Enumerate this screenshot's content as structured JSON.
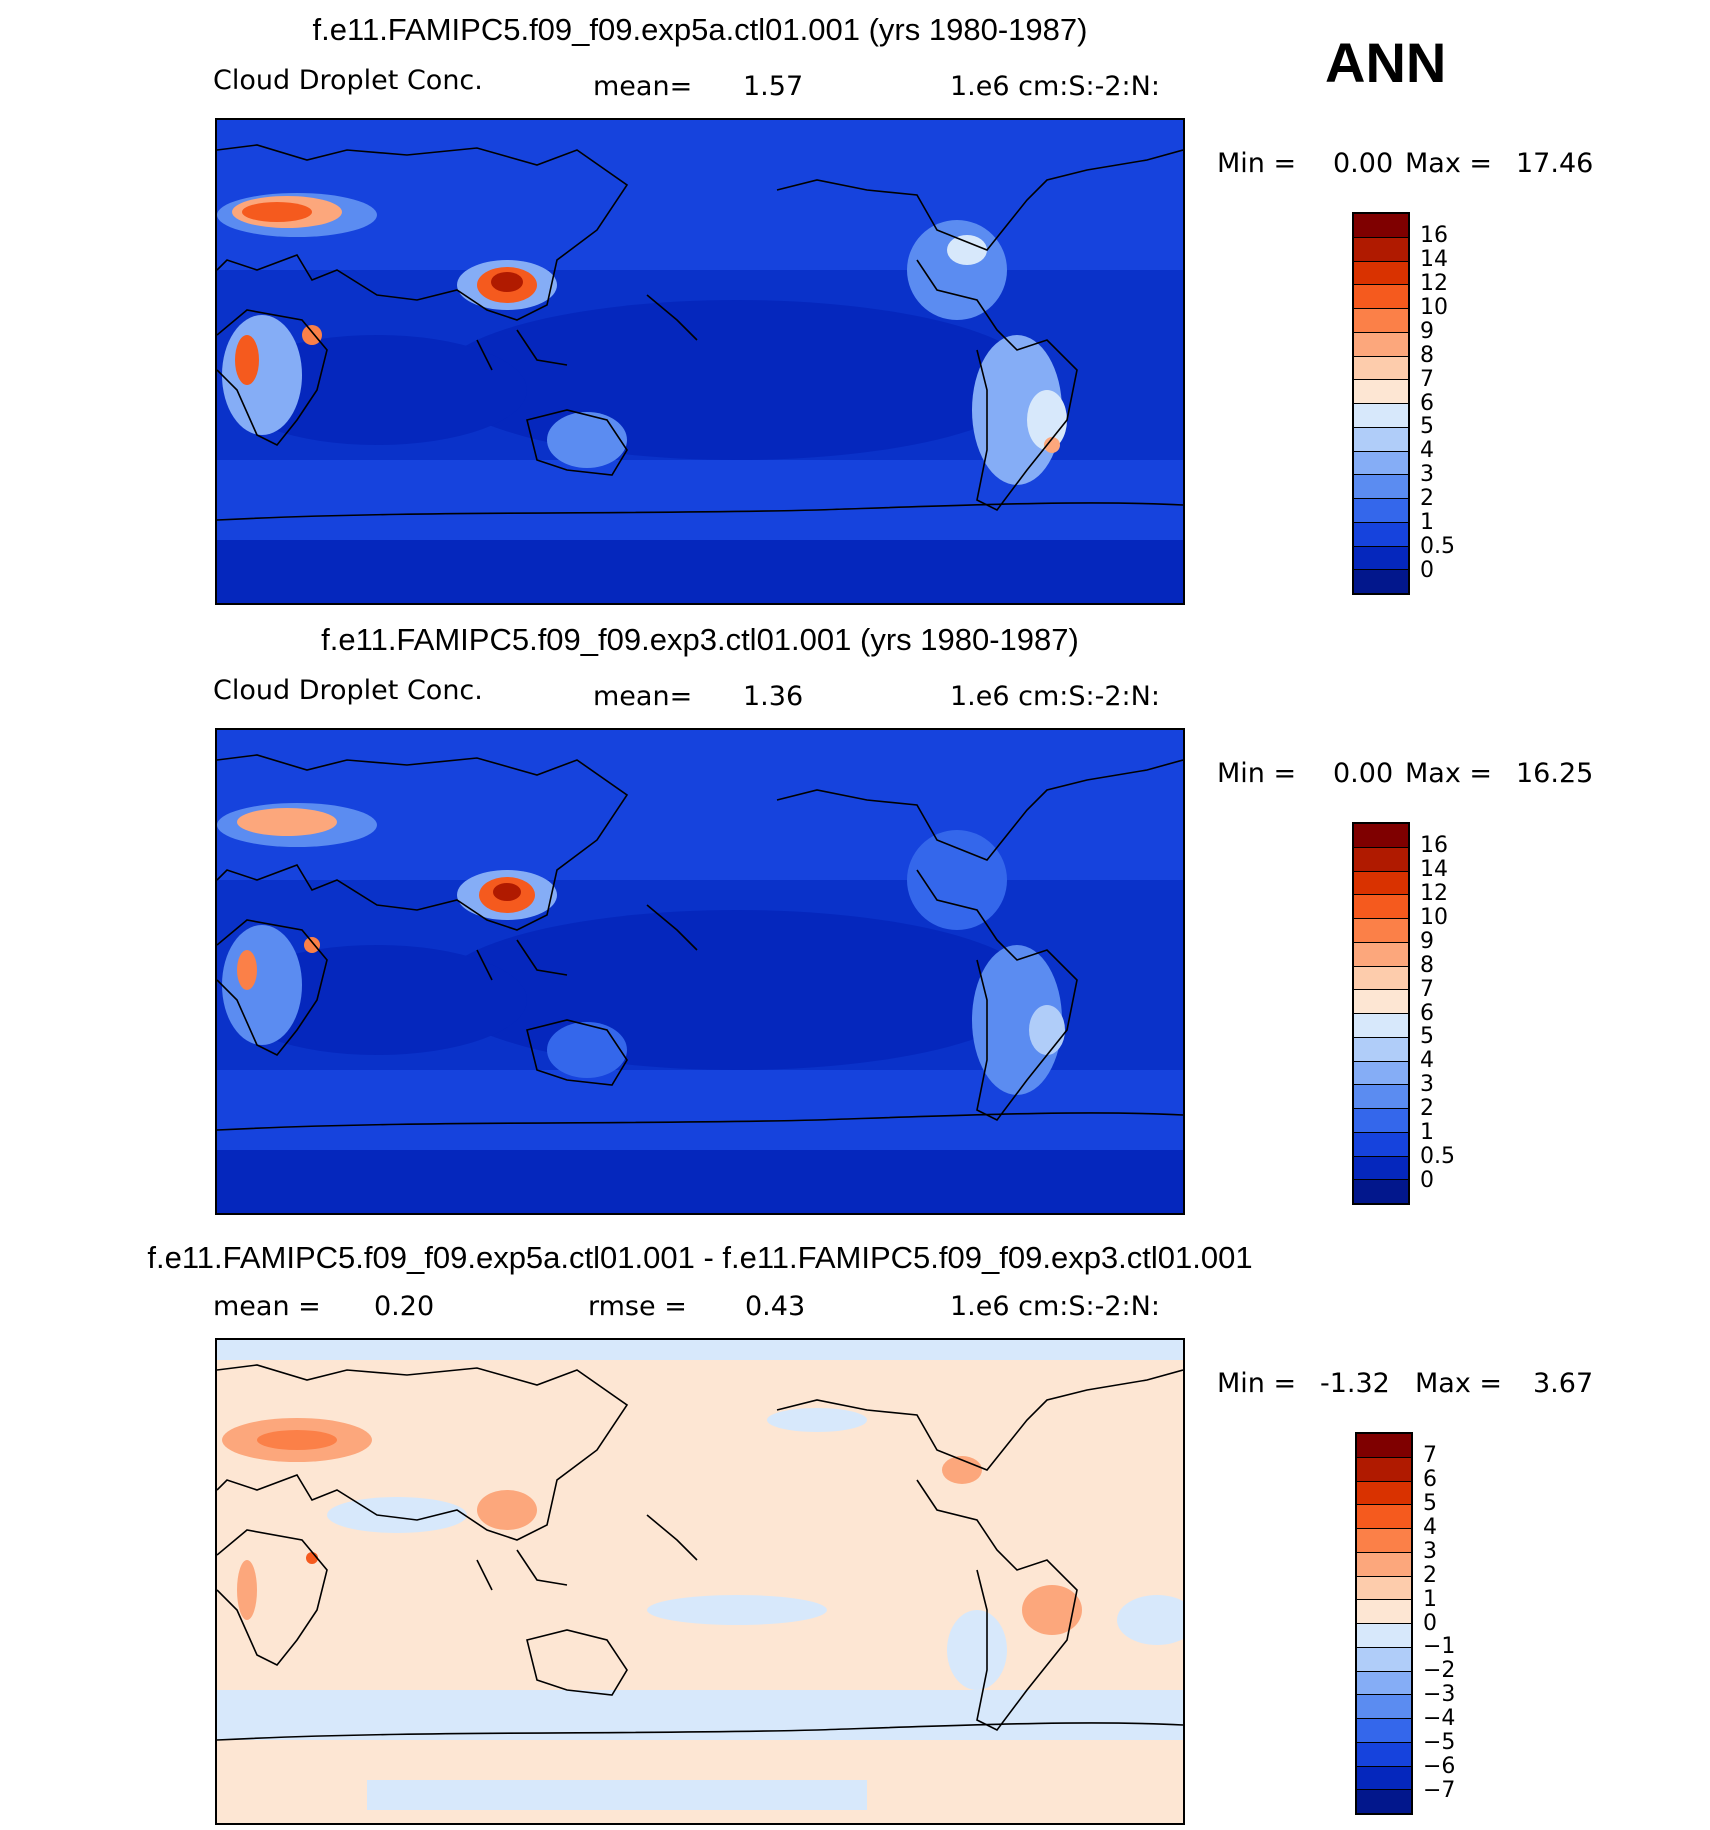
{
  "season": "ANN",
  "panels": [
    {
      "title": "f.e11.FAMIPC5.f09_f09.exp5a.ctl01.001 (yrs 1980-1987)",
      "left_label": "Cloud Droplet Conc.",
      "mid_label": "mean=",
      "mid_value": "1.57",
      "units": "1.e6 cm:S:-2:N:",
      "min_label": "Min =",
      "min_value": "0.00",
      "max_label": "Max =",
      "max_value": "17.46",
      "colorbar": {
        "labels": [
          "16",
          "14",
          "12",
          "10",
          "9",
          "8",
          "7",
          "6",
          "5",
          "4",
          "3",
          "2",
          "1",
          "0.5",
          "0"
        ],
        "colors": [
          "#7f0000",
          "#b01a00",
          "#d93200",
          "#f55a1e",
          "#fb8048",
          "#fca77c",
          "#fdccac",
          "#fde6d3",
          "#d7e8fb",
          "#b0cdf9",
          "#85adf6",
          "#5b8cf1",
          "#3467eb",
          "#1643dd",
          "#0527bd",
          "#02178c"
        ]
      },
      "map_style": "full"
    },
    {
      "title": "f.e11.FAMIPC5.f09_f09.exp3.ctl01.001 (yrs 1980-1987)",
      "left_label": "Cloud Droplet Conc.",
      "mid_label": "mean=",
      "mid_value": "1.36",
      "units": "1.e6 cm:S:-2:N:",
      "min_label": "Min =",
      "min_value": "0.00",
      "max_label": "Max =",
      "max_value": "16.25",
      "colorbar": {
        "labels": [
          "16",
          "14",
          "12",
          "10",
          "9",
          "8",
          "7",
          "6",
          "5",
          "4",
          "3",
          "2",
          "1",
          "0.5",
          "0"
        ],
        "colors": [
          "#7f0000",
          "#b01a00",
          "#d93200",
          "#f55a1e",
          "#fb8048",
          "#fca77c",
          "#fdccac",
          "#fde6d3",
          "#d7e8fb",
          "#b0cdf9",
          "#85adf6",
          "#5b8cf1",
          "#3467eb",
          "#1643dd",
          "#0527bd",
          "#02178c"
        ]
      },
      "map_style": "full"
    },
    {
      "title": "f.e11.FAMIPC5.f09_f09.exp5a.ctl01.001 - f.e11.FAMIPC5.f09_f09.exp3.ctl01.001",
      "left_label": "mean =",
      "left_value": "0.20",
      "mid_label": "rmse =",
      "mid_value": "0.43",
      "units": "1.e6 cm:S:-2:N:",
      "min_label": "Min =",
      "min_value": "-1.32",
      "max_label": "Max =",
      "max_value": "3.67",
      "colorbar": {
        "labels": [
          "7",
          "6",
          "5",
          "4",
          "3",
          "2",
          "1",
          "0",
          "-1",
          "-2",
          "-3",
          "-4",
          "-5",
          "-6",
          "-7"
        ],
        "colors": [
          "#7f0000",
          "#b01a00",
          "#d93200",
          "#f55a1e",
          "#fb8048",
          "#fca77c",
          "#fdccac",
          "#fde6d3",
          "#d7e8fb",
          "#b0cdf9",
          "#85adf6",
          "#5b8cf1",
          "#3467eb",
          "#1643dd",
          "#0527bd",
          "#02178c"
        ]
      },
      "map_style": "diff"
    }
  ]
}
